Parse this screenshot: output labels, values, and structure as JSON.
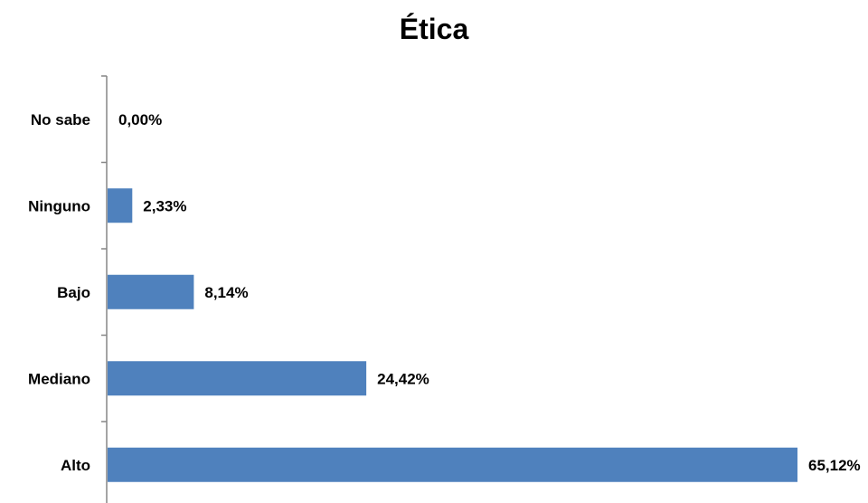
{
  "chart_data": {
    "type": "bar",
    "orientation": "horizontal",
    "title": "Ética",
    "categories": [
      "No sabe",
      "Ninguno",
      "Bajo",
      "Mediano",
      "Alto"
    ],
    "values": [
      0.0,
      2.33,
      8.14,
      24.42,
      65.12
    ],
    "data_labels": [
      "0,00%",
      "2,33%",
      "8,14%",
      "24,42%",
      "65,12%"
    ],
    "unit": "%",
    "xlim": [
      0,
      65.12
    ],
    "grid": false,
    "legend": "none",
    "bar_color": "#4F81BD"
  }
}
